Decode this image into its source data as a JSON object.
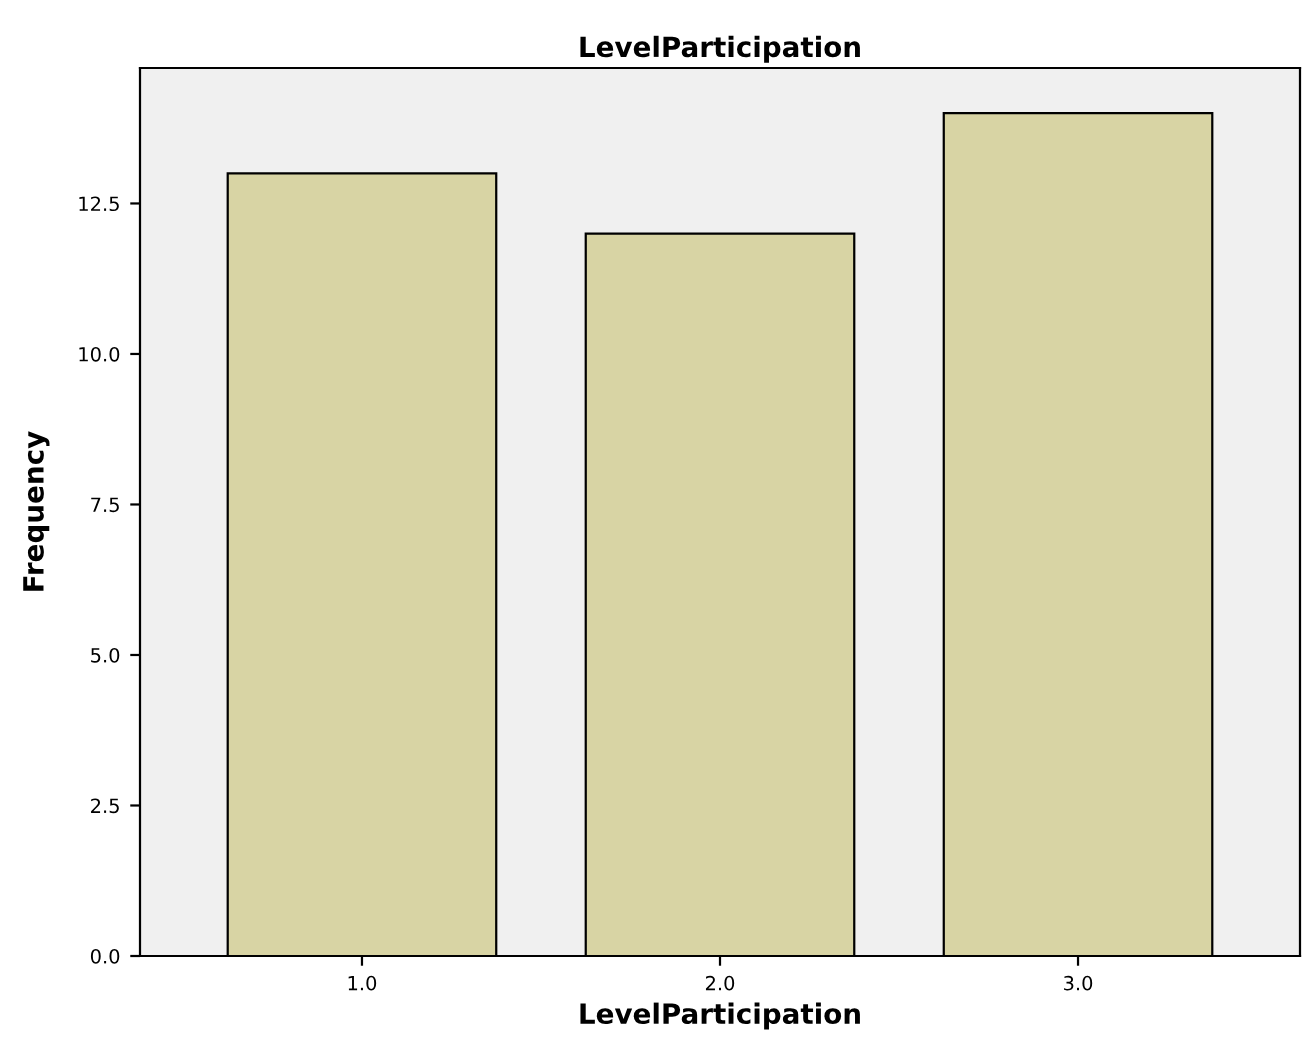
{
  "chart_data": {
    "type": "bar",
    "title": "LevelParticipation",
    "xlabel": "LevelParticipation",
    "ylabel": "Frequency",
    "categories": [
      "1.0",
      "2.0",
      "3.0"
    ],
    "values": [
      13,
      12,
      14
    ],
    "color": "#d8d4a4",
    "ylim": [
      0,
      14.75
    ],
    "yticks": [
      {
        "value": 0,
        "label": "0.0"
      },
      {
        "value": 2.5,
        "label": "2.5"
      },
      {
        "value": 5,
        "label": "5.0"
      },
      {
        "value": 7.5,
        "label": "7.5"
      },
      {
        "value": 10,
        "label": "10.0"
      },
      {
        "value": 12.5,
        "label": "12.5"
      }
    ],
    "grid": false,
    "legend": false
  }
}
